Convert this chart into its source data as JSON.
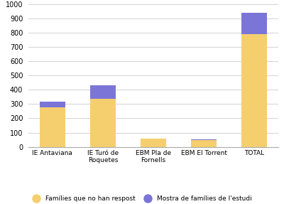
{
  "categories": [
    "IE Antaviana",
    "IE Turó de\nRoquetes",
    "EBM Pla de\nFornells",
    "EBM El Torrent",
    "TOTAL"
  ],
  "yellow_values": [
    275,
    335,
    60,
    50,
    790
  ],
  "purple_values": [
    40,
    95,
    0,
    5,
    150
  ],
  "yellow_color": "#F5CE6E",
  "purple_color": "#7B75D8",
  "ylim": [
    0,
    1000
  ],
  "yticks": [
    0,
    100,
    200,
    300,
    400,
    500,
    600,
    700,
    800,
    900,
    1000
  ],
  "legend_yellow": "Famílies que no han respost",
  "legend_purple": "Mostra de famílies de l'estudi",
  "background_color": "#ffffff",
  "grid_color": "#cccccc"
}
